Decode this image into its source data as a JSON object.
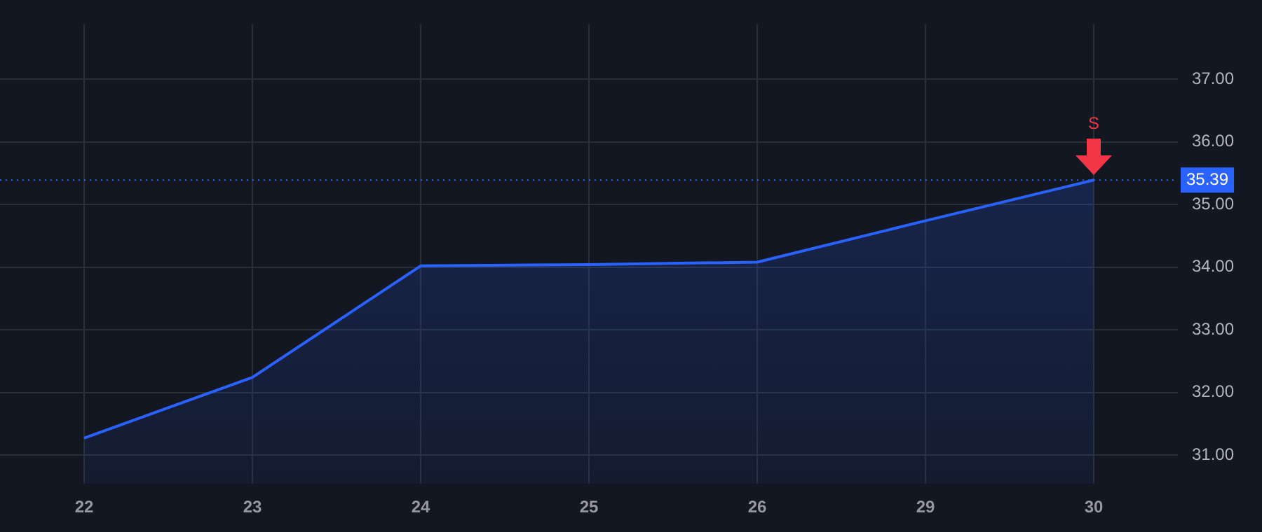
{
  "chart_data": {
    "type": "area",
    "categories": [
      "22",
      "23",
      "24",
      "25",
      "26",
      "29",
      "30"
    ],
    "series": [
      {
        "color": "#2962ff",
        "values": [
          31.27,
          32.24,
          34.02,
          34.04,
          34.08,
          34.74,
          35.39
        ]
      }
    ],
    "ylim": [
      30.54,
      37.88
    ],
    "yticks": [
      {
        "value": 31,
        "label": "31.00"
      },
      {
        "value": 32,
        "label": "32.00"
      },
      {
        "value": 33,
        "label": "33.00"
      },
      {
        "value": 34,
        "label": "34.00"
      },
      {
        "value": 35,
        "label": "35.00"
      },
      {
        "value": 36,
        "label": "36.00"
      },
      {
        "value": 37,
        "label": "37.00"
      }
    ],
    "grid": true,
    "legend": false,
    "marker": "none",
    "line_style": "solid",
    "ref_lines": [
      {
        "axis": "y",
        "value": 35.39,
        "label": "35.39",
        "color": "#2962ff",
        "line_style": "dotted"
      }
    ],
    "annotations": [
      {
        "text": "S",
        "x": "30",
        "y": 35.39
      }
    ]
  }
}
